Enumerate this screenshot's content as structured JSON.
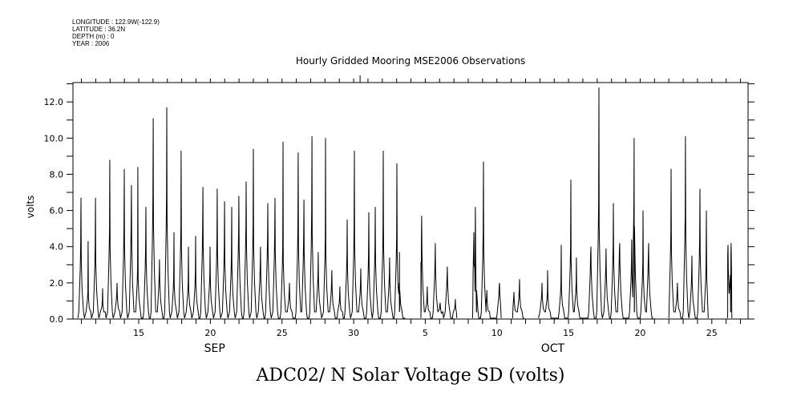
{
  "header": {
    "longitude": "LONGITUDE : 122.9W(-122.9)",
    "latitude": "LATITUDE : 36.2N",
    "depth": "DEPTH (m) : 0",
    "year": "YEAR : 2006"
  },
  "chart_data": {
    "type": "line",
    "title": "Hourly Gridded Mooring MSE2006 Observations",
    "xlabel": "ADC02/ N Solar Voltage SD (volts)",
    "ylabel": "volts",
    "x_units": "days (Sep 1 = 1, Oct 1 = 31)",
    "xlim": [
      10.41,
      57.53
    ],
    "ylim": [
      0,
      13.07
    ],
    "y_ticks": [
      "0.0",
      "2.0",
      "4.0",
      "6.0",
      "8.0",
      "10.0",
      "12.0"
    ],
    "y_tick_values": [
      0,
      2,
      4,
      6,
      8,
      10,
      12
    ],
    "x_tick_labels": [
      {
        "t": 15,
        "label": "15"
      },
      {
        "t": 20,
        "label": "20"
      },
      {
        "t": 25,
        "label": "25"
      },
      {
        "t": 30,
        "label": "30"
      },
      {
        "t": 35,
        "label": "5"
      },
      {
        "t": 40,
        "label": "10"
      },
      {
        "t": 45,
        "label": "15"
      },
      {
        "t": 50,
        "label": "20"
      },
      {
        "t": 55,
        "label": "25"
      }
    ],
    "month_labels": [
      {
        "t": 20.3,
        "label": "SEP"
      },
      {
        "t": 43.9,
        "label": "OCT"
      }
    ],
    "segments": [
      [
        10.75,
        33.6
      ],
      [
        34.7,
        37.2
      ],
      [
        38.3,
        40.3
      ],
      [
        41.1,
        41.9
      ],
      [
        42.9,
        50.9
      ],
      [
        52.0,
        54.75
      ],
      [
        56.1,
        56.4
      ]
    ],
    "spikes": [
      [
        10.97,
        6.7,
        4.0
      ],
      [
        11.47,
        4.3,
        1.5
      ],
      [
        11.98,
        6.7,
        4.0
      ],
      [
        12.48,
        1.7,
        1.0
      ],
      [
        12.98,
        8.8,
        5.0
      ],
      [
        13.49,
        2.0,
        1.5
      ],
      [
        13.99,
        8.3,
        5.0
      ],
      [
        14.49,
        7.4,
        5.1
      ],
      [
        14.94,
        8.4,
        2.8
      ],
      [
        15.5,
        6.2,
        4.0
      ],
      [
        16.01,
        11.1,
        6.7
      ],
      [
        16.45,
        3.3,
        2.5
      ],
      [
        16.96,
        11.7,
        6.8
      ],
      [
        17.46,
        4.8,
        2.3
      ],
      [
        17.96,
        9.3,
        5.0
      ],
      [
        18.47,
        4.0,
        2.0
      ],
      [
        18.97,
        4.6,
        2.5
      ],
      [
        19.48,
        7.3,
        5.0
      ],
      [
        19.98,
        4.0,
        2.5
      ],
      [
        20.48,
        7.2,
        4.5
      ],
      [
        20.99,
        6.5,
        4.0
      ],
      [
        21.49,
        6.2,
        3.5
      ],
      [
        21.99,
        6.8,
        4.8
      ],
      [
        22.5,
        7.6,
        5.1
      ],
      [
        23.0,
        9.4,
        5.2
      ],
      [
        23.5,
        4.0,
        3.0
      ],
      [
        24.01,
        6.4,
        4.5
      ],
      [
        24.51,
        6.7,
        4.7
      ],
      [
        25.07,
        9.8,
        4.0
      ],
      [
        25.52,
        2.0,
        1.5
      ],
      [
        26.13,
        9.2,
        5.0
      ],
      [
        26.53,
        6.6,
        4.5
      ],
      [
        27.09,
        10.1,
        5.8
      ],
      [
        27.53,
        3.7,
        2.5
      ],
      [
        28.04,
        10.0,
        4.4
      ],
      [
        28.48,
        2.7,
        2.0
      ],
      [
        29.04,
        1.8,
        1.2
      ],
      [
        29.55,
        5.5,
        3.5
      ],
      [
        30.05,
        9.3,
        5.0
      ],
      [
        30.5,
        2.8,
        2.0
      ],
      [
        31.06,
        5.9,
        3.5
      ],
      [
        31.51,
        6.2,
        4.0
      ],
      [
        32.07,
        9.3,
        5.0
      ],
      [
        32.51,
        3.4,
        2.5
      ],
      [
        33.02,
        8.6,
        4.5
      ],
      [
        33.2,
        3.7,
        2.0
      ],
      [
        34.75,
        5.7,
        4.5
      ],
      [
        35.14,
        1.8,
        1.2
      ],
      [
        35.7,
        4.2,
        3.2
      ],
      [
        36.04,
        0.9,
        0.8
      ],
      [
        36.54,
        2.9,
        2.4
      ],
      [
        37.1,
        1.1,
        0.8
      ],
      [
        38.39,
        4.8,
        3.8
      ],
      [
        38.5,
        6.2,
        4.0
      ],
      [
        39.06,
        8.7,
        4.8
      ],
      [
        39.3,
        1.6,
        1.2
      ],
      [
        40.18,
        2.0,
        1.8
      ],
      [
        41.19,
        1.5,
        1.2
      ],
      [
        41.58,
        2.2,
        1.6
      ],
      [
        43.15,
        2.0,
        1.5
      ],
      [
        43.54,
        2.7,
        1.5
      ],
      [
        44.49,
        4.1,
        2.0
      ],
      [
        45.16,
        7.7,
        4.0
      ],
      [
        45.55,
        3.4,
        2.0
      ],
      [
        46.56,
        4.0,
        3.5
      ],
      [
        47.12,
        12.8,
        6.4
      ],
      [
        47.62,
        3.9,
        3.0
      ],
      [
        48.13,
        6.4,
        4.0
      ],
      [
        48.57,
        4.2,
        3.8
      ],
      [
        49.41,
        4.4,
        3.0
      ],
      [
        49.58,
        10.0,
        6.4
      ],
      [
        50.2,
        6.0,
        3.0
      ],
      [
        50.59,
        4.2,
        3.5
      ],
      [
        52.16,
        8.3,
        4.8
      ],
      [
        52.6,
        2.0,
        1.5
      ],
      [
        53.16,
        10.1,
        5.8
      ],
      [
        53.61,
        3.5,
        2.5
      ],
      [
        54.17,
        7.2,
        4.5
      ],
      [
        54.62,
        6.0,
        3.0
      ],
      [
        56.13,
        4.1,
        3.5
      ],
      [
        56.35,
        4.2,
        3.5
      ]
    ]
  }
}
